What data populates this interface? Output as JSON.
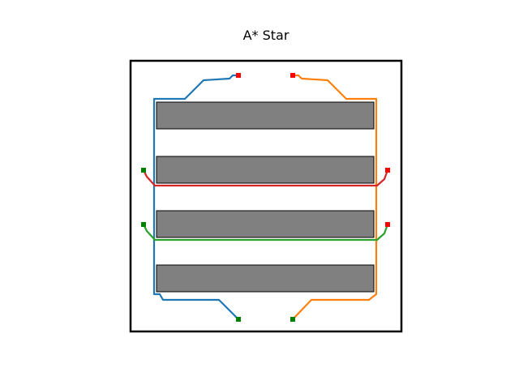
{
  "figure": {
    "title": "A* Star"
  },
  "colors": {
    "obstacle_fill": "#808080",
    "obstacle_edge": "#000000",
    "start_marker": "#ff0000",
    "goal_marker": "#008000",
    "path_blue": "#1f77b4",
    "path_orange": "#ff7f0e",
    "path_red": "#d62728",
    "path_green": "#2ca02c"
  }
}
